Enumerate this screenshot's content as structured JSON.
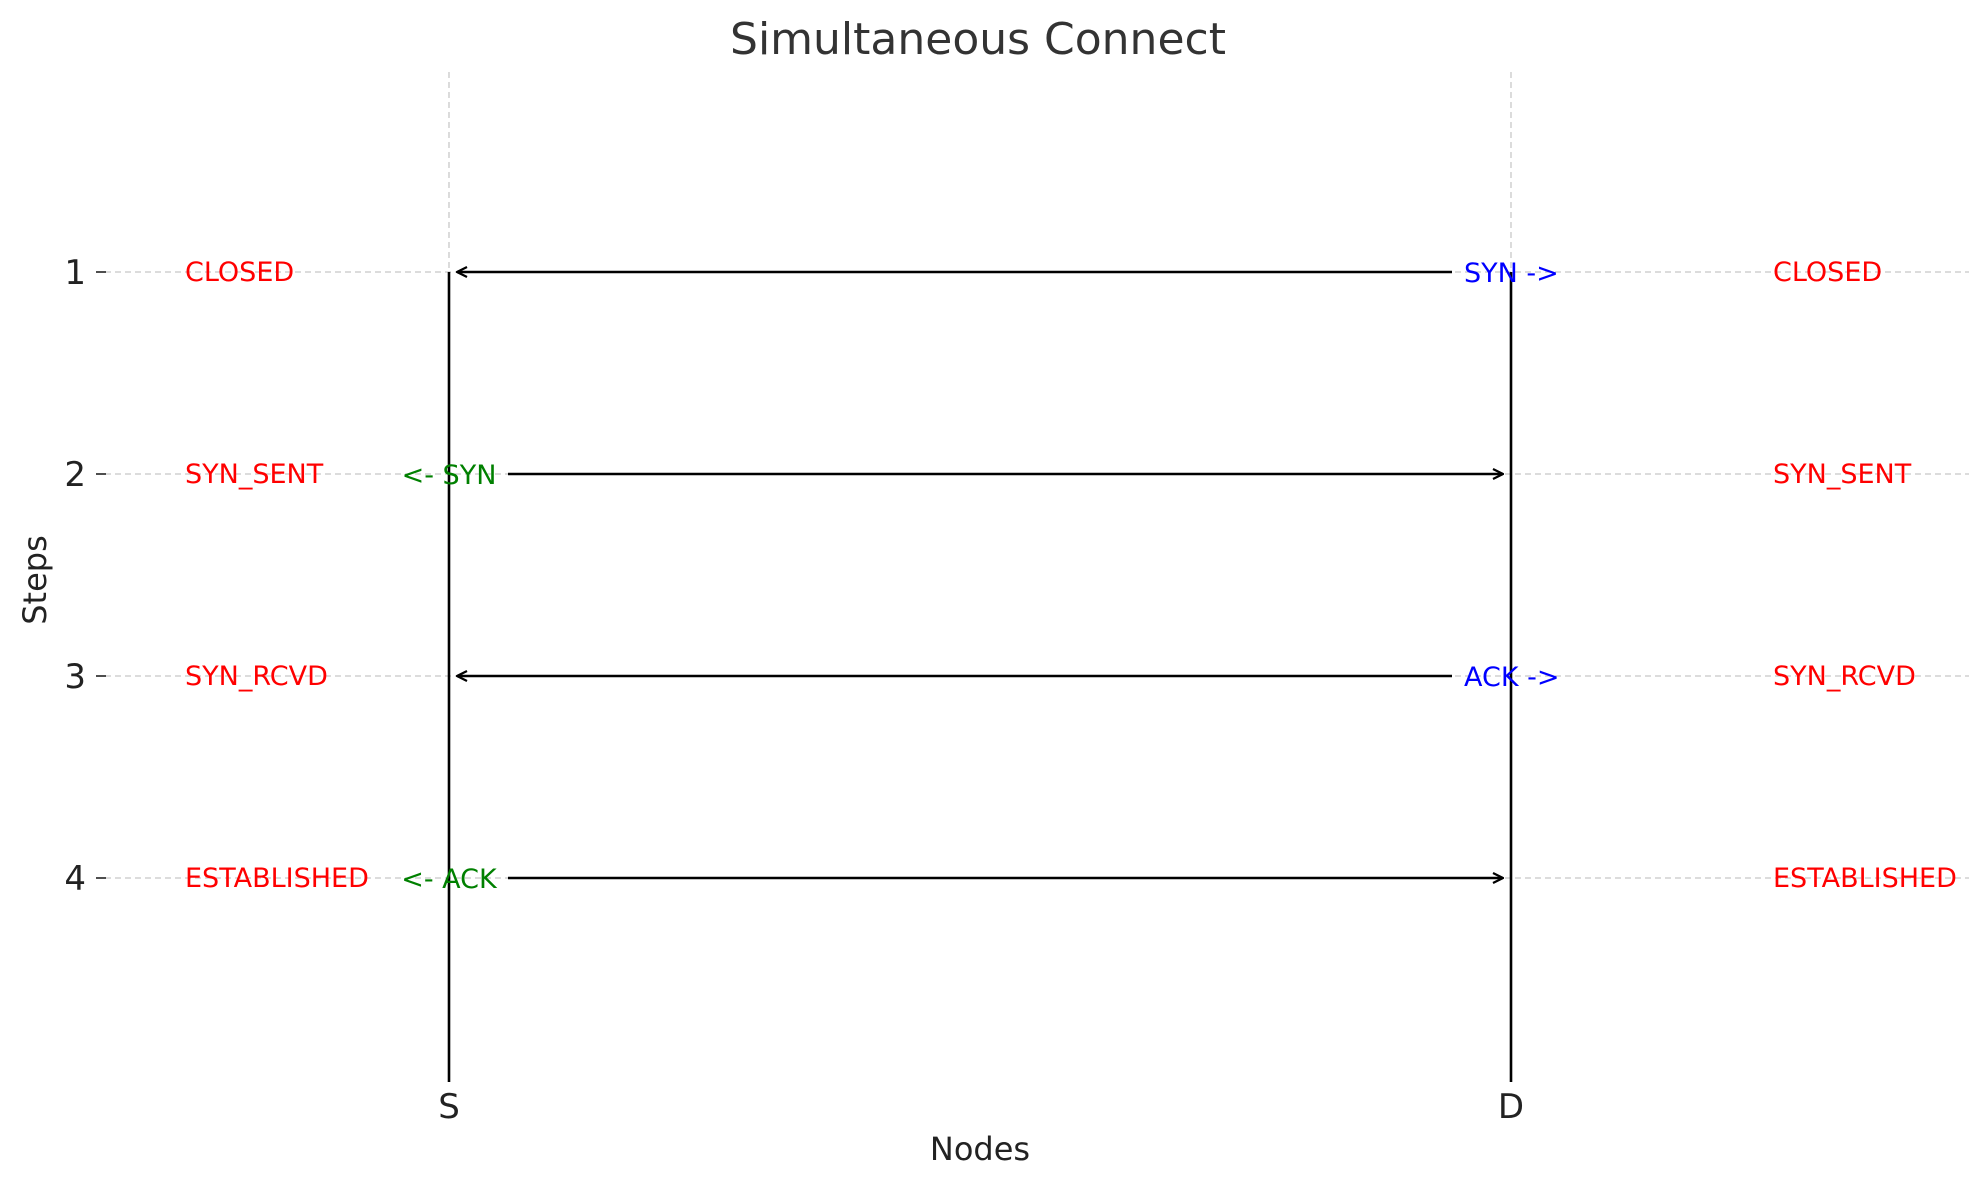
{
  "title": "Simultaneous Connect",
  "xlabel": "Nodes",
  "ylabel": "Steps",
  "nodes": [
    {
      "id": "S",
      "label": "S"
    },
    {
      "id": "D",
      "label": "D"
    }
  ],
  "steps": [
    1,
    2,
    3,
    4
  ],
  "step_labels": [
    "1",
    "2",
    "3",
    "4"
  ],
  "grid": true,
  "colors": {
    "state": "#ff0000",
    "left_message": "#008000",
    "right_message": "#0000ff",
    "lifeline": "#000000",
    "gridline": "#c8c8c8"
  },
  "left_states": [
    "CLOSED",
    "SYN_SENT",
    "SYN_RCVD",
    "ESTABLISHED"
  ],
  "right_states": [
    "CLOSED",
    "SYN_SENT",
    "SYN_RCVD",
    "ESTABLISHED"
  ],
  "messages": [
    {
      "step": 1,
      "label": "SYN ->",
      "from": "D",
      "to": "S",
      "label_side": "D",
      "color_key": "right_message"
    },
    {
      "step": 2,
      "label": "<- SYN",
      "from": "S",
      "to": "D",
      "label_side": "S",
      "color_key": "left_message"
    },
    {
      "step": 3,
      "label": "ACK ->",
      "from": "D",
      "to": "S",
      "label_side": "D",
      "color_key": "right_message"
    },
    {
      "step": 4,
      "label": "<- ACK",
      "from": "S",
      "to": "D",
      "label_side": "S",
      "color_key": "left_message"
    }
  ]
}
